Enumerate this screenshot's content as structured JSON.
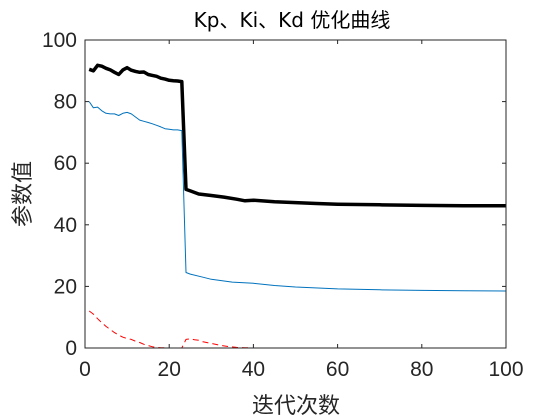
{
  "chart_data": {
    "type": "line",
    "title": "Kp、Ki、Kd 优化曲线",
    "xlabel": "迭代次数",
    "ylabel": "参数值",
    "xlim": [
      0,
      100
    ],
    "ylim": [
      0,
      100
    ],
    "xticks": [
      0,
      20,
      40,
      60,
      80,
      100
    ],
    "yticks": [
      0,
      20,
      40,
      60,
      80,
      100
    ],
    "grid": false,
    "legend": "none",
    "series": [
      {
        "color": "#000000",
        "style": "solid-thick",
        "x": [
          1,
          2,
          3,
          4,
          5,
          6,
          7,
          8,
          9,
          10,
          11,
          12,
          13,
          14,
          15,
          16,
          17,
          18,
          19,
          20,
          21,
          22,
          23,
          24,
          25,
          27,
          30,
          33,
          36,
          38,
          40,
          45,
          50,
          55,
          60,
          70,
          80,
          90,
          100
        ],
        "y": [
          90.5,
          90.0,
          91.8,
          91.5,
          90.8,
          90.3,
          89.5,
          88.8,
          90.3,
          91.0,
          90.2,
          89.8,
          89.5,
          89.6,
          88.8,
          88.5,
          88.2,
          87.6,
          87.3,
          86.9,
          86.8,
          86.7,
          86.5,
          51.5,
          51.0,
          50.0,
          49.5,
          49.0,
          48.3,
          47.8,
          48.0,
          47.5,
          47.2,
          46.9,
          46.7,
          46.5,
          46.3,
          46.2,
          46.2
        ]
      },
      {
        "color": "#0072BD",
        "style": "solid-thin",
        "x": [
          1,
          2,
          3,
          4,
          5,
          6,
          7,
          8,
          9,
          10,
          11,
          12,
          13,
          14,
          15,
          16,
          17,
          18,
          19,
          20,
          21,
          22,
          23,
          24,
          25,
          28,
          30,
          35,
          40,
          45,
          50,
          60,
          70,
          80,
          90,
          100
        ],
        "y": [
          80.0,
          78.0,
          78.2,
          77.0,
          76.2,
          76.0,
          76.0,
          75.5,
          76.2,
          76.5,
          76.0,
          75.0,
          74.0,
          73.6,
          73.2,
          72.8,
          72.3,
          71.8,
          71.2,
          71.0,
          70.8,
          70.8,
          70.6,
          24.5,
          24.0,
          23.0,
          22.3,
          21.4,
          21.0,
          20.3,
          19.8,
          19.2,
          18.9,
          18.7,
          18.6,
          18.5
        ]
      },
      {
        "color": "#FF0000",
        "style": "dashed",
        "x": [
          1,
          2,
          3,
          4,
          5,
          6,
          7,
          8,
          9,
          10,
          11,
          12,
          13,
          14,
          15,
          16,
          17,
          18,
          19,
          20,
          21,
          22,
          23,
          24,
          25,
          26,
          27,
          28,
          30,
          32,
          34,
          36,
          38,
          40,
          45,
          50,
          60,
          70,
          80,
          90,
          100
        ],
        "y": [
          12.0,
          11.0,
          9.5,
          8.2,
          7.0,
          6.0,
          5.0,
          4.2,
          3.5,
          3.1,
          2.8,
          2.2,
          1.8,
          1.2,
          0.8,
          0.4,
          0.2,
          0.1,
          0.05,
          0.0,
          0.0,
          0.0,
          0.0,
          2.8,
          3.0,
          2.7,
          2.5,
          2.0,
          1.5,
          0.9,
          0.5,
          0.2,
          0.1,
          0.0,
          0.0,
          0.0,
          0.0,
          0.0,
          0.0,
          0.0,
          0.0
        ]
      }
    ]
  }
}
